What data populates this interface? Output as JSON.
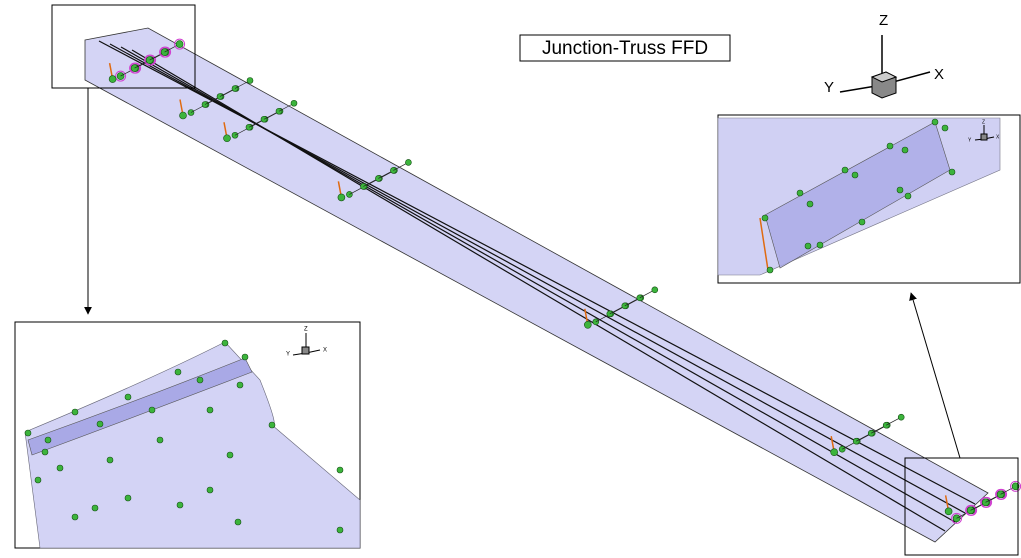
{
  "title": "Junction-Truss FFD",
  "triad": {
    "z": "Z",
    "y": "Y",
    "x": "X"
  },
  "inset_left_triad": {
    "z": "Z",
    "y": "Y",
    "x": "X"
  },
  "inset_right_triad": {
    "z": "Z",
    "y": "Y",
    "x": "X"
  }
}
